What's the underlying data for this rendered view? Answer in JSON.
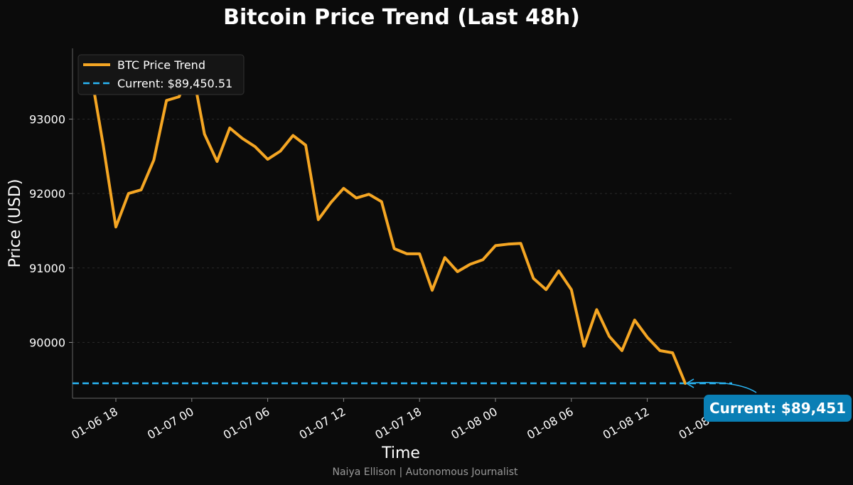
{
  "chart_data": {
    "type": "line",
    "title": "Bitcoin Price Trend (Last 48h)",
    "xlabel": "Time",
    "ylabel": "Price (USD)",
    "ylim": [
      89250,
      93950
    ],
    "yticks": [
      90000,
      91000,
      92000,
      93000
    ],
    "xlim_hours": [
      16.5,
      63.5
    ],
    "xticks": [
      {
        "h": 18,
        "label": "01-06 18"
      },
      {
        "h": 24,
        "label": "01-07 00"
      },
      {
        "h": 30,
        "label": "01-07 06"
      },
      {
        "h": 36,
        "label": "01-07 12"
      },
      {
        "h": 42,
        "label": "01-07 18"
      },
      {
        "h": 48,
        "label": "01-08 00"
      },
      {
        "h": 54,
        "label": "01-08 06"
      },
      {
        "h": 60,
        "label": "01-08 12"
      },
      {
        "h": 66,
        "label": "01-08 18"
      }
    ],
    "grid": true,
    "legend_position": "top-left",
    "series": [
      {
        "name": "BTC Price Trend",
        "color": "#f5a623",
        "x": [
          16.0,
          17.0,
          18.0,
          19.0,
          20.0,
          21.0,
          22.0,
          23.0,
          24.0,
          25.0,
          26.0,
          27.0,
          28.0,
          29.0,
          30.0,
          31.0,
          32.0,
          33.0,
          34.0,
          35.0,
          36.0,
          37.0,
          38.0,
          39.0,
          40.0,
          41.0,
          42.0,
          43.0,
          44.0,
          45.0,
          46.0,
          47.0,
          48.0,
          49.0,
          50.0,
          51.0,
          52.0,
          53.0,
          54.0,
          55.0,
          56.0,
          57.0,
          58.0,
          59.0,
          60.0,
          61.0,
          62.0,
          63.0
        ],
        "y": [
          93650,
          92650,
          91550,
          92000,
          92050,
          92450,
          93250,
          93300,
          93700,
          92800,
          92430,
          92880,
          92740,
          92630,
          92460,
          92570,
          92780,
          92650,
          91650,
          91880,
          92070,
          91940,
          91990,
          91890,
          91260,
          91190,
          91190,
          90700,
          91140,
          90950,
          91050,
          91110,
          91300,
          91320,
          91330,
          90860,
          90710,
          90960,
          90710,
          89950,
          90440,
          90080,
          89890,
          90300,
          90070,
          89890,
          89860,
          89450
        ]
      }
    ],
    "reference_line": {
      "name": "Current: $89,450.51",
      "value": 89450.51,
      "color": "#29b6f6",
      "style": "dashed"
    },
    "annotation": {
      "text": "Current: $89,451",
      "x": 63.0,
      "y": 89450.51,
      "box_color": "#0a7fb5"
    },
    "credit": "Naiya Ellison | Autonomous Journalist"
  }
}
